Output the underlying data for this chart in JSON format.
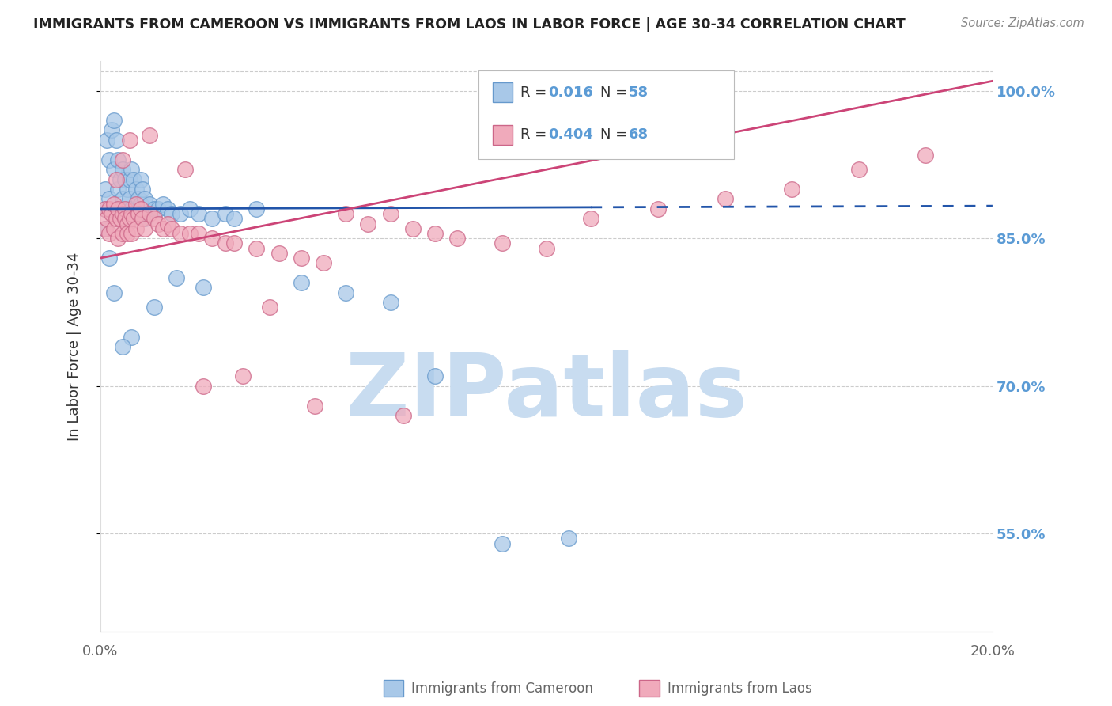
{
  "title": "IMMIGRANTS FROM CAMEROON VS IMMIGRANTS FROM LAOS IN LABOR FORCE | AGE 30-34 CORRELATION CHART",
  "source": "Source: ZipAtlas.com",
  "ylabel": "In Labor Force | Age 30-34",
  "xlim": [
    0.0,
    20.0
  ],
  "ylim": [
    45.0,
    103.0
  ],
  "yticks": [
    55.0,
    70.0,
    85.0,
    100.0
  ],
  "ytick_labels": [
    "55.0%",
    "70.0%",
    "85.0%",
    "100.0%"
  ],
  "color_cameroon_fill": "#A8C8E8",
  "color_cameroon_edge": "#6699CC",
  "color_laos_fill": "#F0AABB",
  "color_laos_edge": "#CC6688",
  "color_line_cameroon": "#2255AA",
  "color_line_laos": "#CC4477",
  "color_axis_right": "#5B9BD5",
  "watermark_color": "#C8DCF0",
  "solid_end_cam": 11.0,
  "cam_line_y0": 88.0,
  "cam_line_slope": 0.015,
  "laos_line_y0": 83.0,
  "laos_line_slope": 0.9,
  "cameroon_x": [
    0.1,
    0.1,
    0.15,
    0.2,
    0.2,
    0.25,
    0.3,
    0.3,
    0.35,
    0.4,
    0.4,
    0.45,
    0.5,
    0.5,
    0.55,
    0.55,
    0.6,
    0.6,
    0.65,
    0.65,
    0.7,
    0.7,
    0.75,
    0.8,
    0.8,
    0.85,
    0.9,
    0.9,
    0.95,
    1.0,
    1.0,
    1.1,
    1.2,
    1.3,
    1.4,
    1.5,
    1.6,
    1.8,
    2.0,
    2.2,
    2.5,
    2.8,
    3.0,
    3.5,
    4.5,
    5.5,
    6.5,
    7.5,
    9.0,
    10.5,
    2.3,
    1.7,
    1.2,
    0.7,
    0.5,
    0.3,
    0.2,
    0.1
  ],
  "cameroon_y": [
    88.0,
    90.0,
    95.0,
    93.0,
    89.0,
    96.0,
    97.0,
    92.0,
    95.0,
    93.0,
    90.0,
    91.0,
    92.0,
    89.0,
    91.0,
    88.0,
    90.0,
    87.0,
    91.0,
    89.0,
    92.0,
    88.0,
    91.0,
    90.0,
    88.0,
    89.0,
    91.0,
    88.5,
    90.0,
    89.0,
    87.0,
    88.5,
    88.0,
    88.0,
    88.5,
    88.0,
    87.5,
    87.5,
    88.0,
    87.5,
    87.0,
    87.5,
    87.0,
    88.0,
    80.5,
    79.5,
    78.5,
    71.0,
    54.0,
    54.5,
    80.0,
    81.0,
    78.0,
    75.0,
    74.0,
    79.5,
    83.0,
    86.0
  ],
  "laos_x": [
    0.1,
    0.1,
    0.15,
    0.2,
    0.2,
    0.25,
    0.3,
    0.3,
    0.35,
    0.4,
    0.4,
    0.45,
    0.5,
    0.5,
    0.55,
    0.55,
    0.6,
    0.6,
    0.65,
    0.7,
    0.7,
    0.75,
    0.8,
    0.8,
    0.85,
    0.9,
    0.95,
    1.0,
    1.1,
    1.2,
    1.3,
    1.4,
    1.5,
    1.6,
    1.8,
    2.0,
    2.2,
    2.5,
    2.8,
    3.0,
    3.5,
    4.0,
    4.5,
    5.0,
    5.5,
    6.0,
    6.5,
    7.0,
    7.5,
    8.0,
    9.0,
    10.0,
    11.0,
    12.5,
    14.0,
    15.5,
    17.0,
    18.5,
    3.2,
    2.3,
    4.8,
    6.8,
    0.35,
    0.5,
    0.65,
    1.1,
    1.9,
    3.8
  ],
  "laos_y": [
    88.0,
    86.0,
    87.0,
    88.0,
    85.5,
    87.5,
    88.5,
    86.0,
    87.0,
    88.0,
    85.0,
    87.0,
    87.5,
    85.5,
    88.0,
    87.0,
    86.5,
    85.5,
    87.0,
    87.5,
    85.5,
    87.0,
    88.5,
    86.0,
    87.5,
    88.0,
    87.0,
    86.0,
    87.5,
    87.0,
    86.5,
    86.0,
    86.5,
    86.0,
    85.5,
    85.5,
    85.5,
    85.0,
    84.5,
    84.5,
    84.0,
    83.5,
    83.0,
    82.5,
    87.5,
    86.5,
    87.5,
    86.0,
    85.5,
    85.0,
    84.5,
    84.0,
    87.0,
    88.0,
    89.0,
    90.0,
    92.0,
    93.5,
    71.0,
    70.0,
    68.0,
    67.0,
    91.0,
    93.0,
    95.0,
    95.5,
    92.0,
    78.0
  ]
}
